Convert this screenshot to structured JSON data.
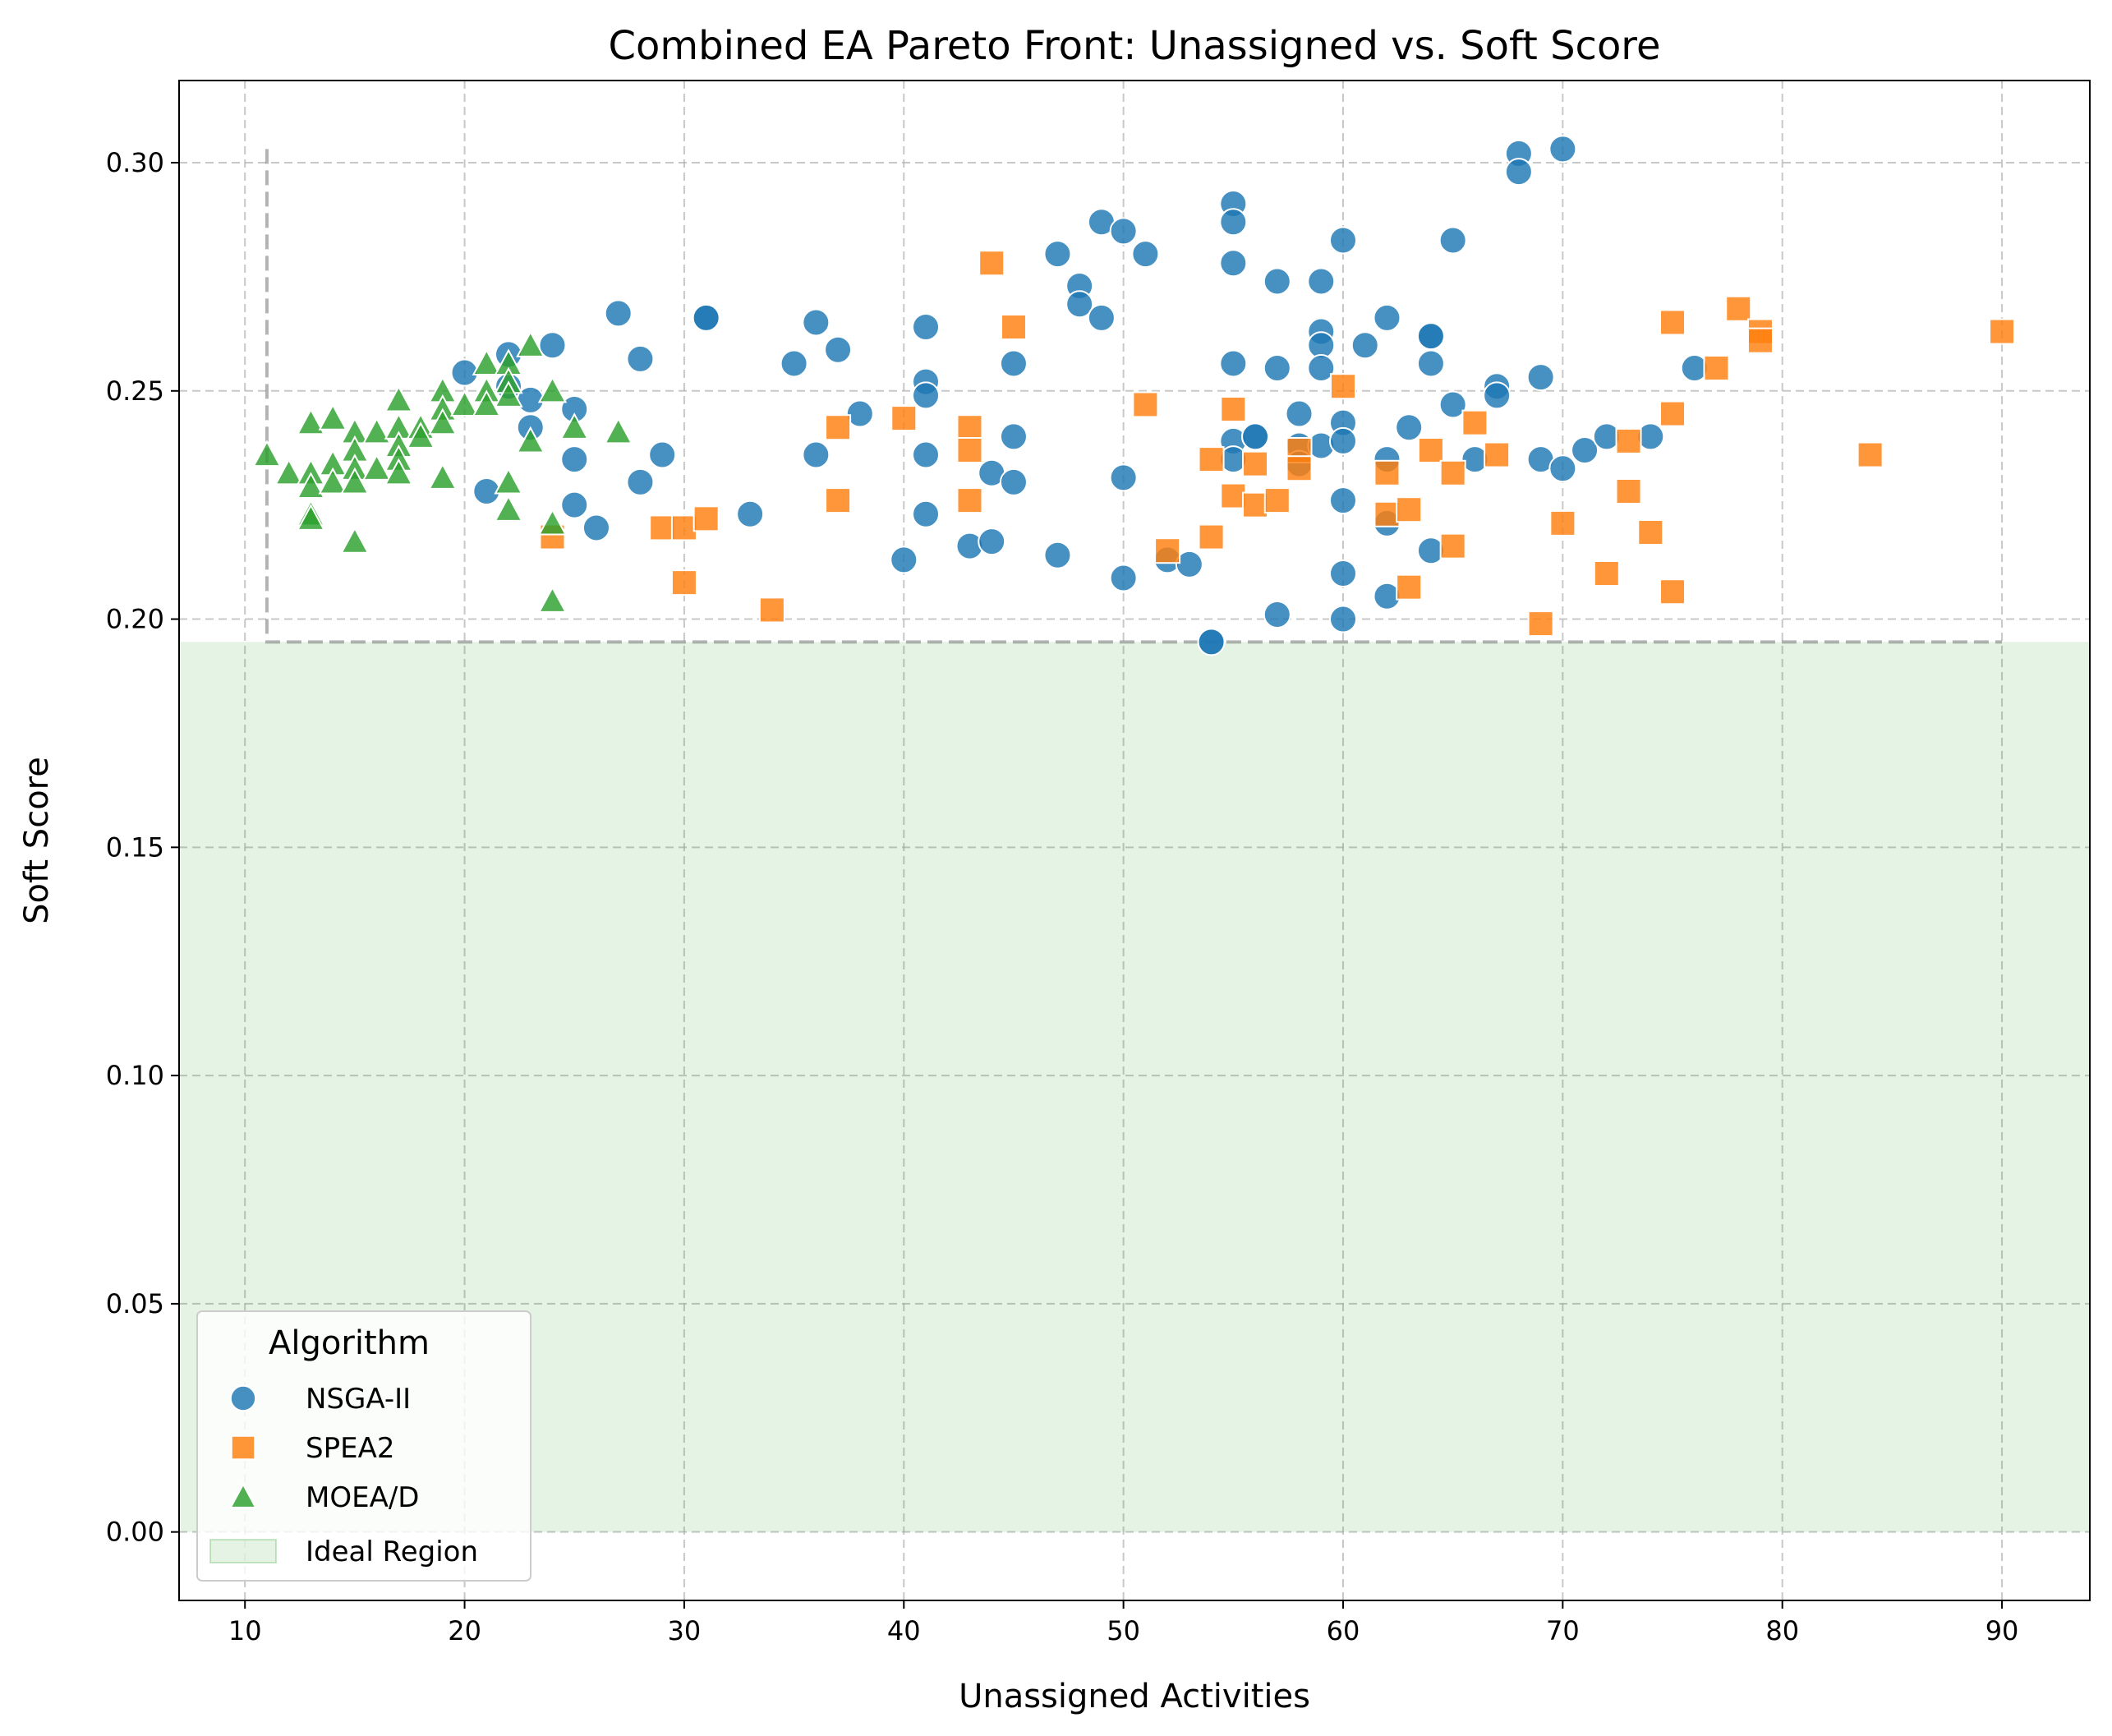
{
  "chart_data": {
    "type": "scatter",
    "title": "Combined EA Pareto Front: Unassigned vs. Soft Score",
    "xlabel": "Unassigned Activities",
    "ylabel": "Soft Score",
    "xlim": [
      7,
      94
    ],
    "ylim": [
      -0.015,
      0.318
    ],
    "xticks": [
      "10",
      "20",
      "30",
      "40",
      "50",
      "60",
      "70",
      "80",
      "90"
    ],
    "yticks": [
      "0.00",
      "0.05",
      "0.10",
      "0.15",
      "0.20",
      "0.25",
      "0.30"
    ],
    "grid": true,
    "legend": {
      "title": "Algorithm",
      "placement": "lower-left",
      "entries": [
        "NSGA-II",
        "SPEA2",
        "MOEA/D",
        "Ideal Region"
      ]
    },
    "ideal_region": {
      "label": "Ideal Region",
      "x": [
        11,
        90
      ],
      "y_min": 0.0,
      "y_max": 0.195,
      "boundary_y_top": 0.303,
      "color": "#2ca02c"
    },
    "series": [
      {
        "name": "NSGA-II",
        "marker": "circle",
        "color": "#1f77b4",
        "points": [
          [
            20,
            0.254
          ],
          [
            21,
            0.228
          ],
          [
            22,
            0.258
          ],
          [
            22,
            0.251
          ],
          [
            23,
            0.248
          ],
          [
            23,
            0.242
          ],
          [
            24,
            0.26
          ],
          [
            25,
            0.246
          ],
          [
            25,
            0.235
          ],
          [
            25,
            0.225
          ],
          [
            26,
            0.22
          ],
          [
            27,
            0.267
          ],
          [
            28,
            0.257
          ],
          [
            28,
            0.23
          ],
          [
            29,
            0.236
          ],
          [
            31,
            0.266
          ],
          [
            31,
            0.266
          ],
          [
            33,
            0.223
          ],
          [
            35,
            0.256
          ],
          [
            36,
            0.265
          ],
          [
            36,
            0.236
          ],
          [
            37,
            0.259
          ],
          [
            38,
            0.245
          ],
          [
            40,
            0.213
          ],
          [
            41,
            0.264
          ],
          [
            41,
            0.252
          ],
          [
            41,
            0.249
          ],
          [
            41,
            0.236
          ],
          [
            41,
            0.223
          ],
          [
            43,
            0.216
          ],
          [
            44,
            0.232
          ],
          [
            44,
            0.217
          ],
          [
            45,
            0.256
          ],
          [
            45,
            0.24
          ],
          [
            45,
            0.23
          ],
          [
            47,
            0.28
          ],
          [
            47,
            0.214
          ],
          [
            48,
            0.273
          ],
          [
            48,
            0.269
          ],
          [
            49,
            0.287
          ],
          [
            49,
            0.266
          ],
          [
            50,
            0.285
          ],
          [
            50,
            0.231
          ],
          [
            50,
            0.209
          ],
          [
            51,
            0.28
          ],
          [
            52,
            0.213
          ],
          [
            53,
            0.212
          ],
          [
            54,
            0.195
          ],
          [
            54,
            0.195
          ],
          [
            55,
            0.291
          ],
          [
            55,
            0.287
          ],
          [
            55,
            0.278
          ],
          [
            55,
            0.256
          ],
          [
            55,
            0.239
          ],
          [
            55,
            0.235
          ],
          [
            56,
            0.24
          ],
          [
            56,
            0.24
          ],
          [
            57,
            0.274
          ],
          [
            57,
            0.255
          ],
          [
            57,
            0.201
          ],
          [
            58,
            0.245
          ],
          [
            58,
            0.238
          ],
          [
            58,
            0.234
          ],
          [
            59,
            0.274
          ],
          [
            59,
            0.263
          ],
          [
            59,
            0.26
          ],
          [
            59,
            0.255
          ],
          [
            59,
            0.238
          ],
          [
            60,
            0.283
          ],
          [
            60,
            0.243
          ],
          [
            60,
            0.239
          ],
          [
            60,
            0.226
          ],
          [
            60,
            0.21
          ],
          [
            60,
            0.2
          ],
          [
            61,
            0.26
          ],
          [
            62,
            0.266
          ],
          [
            62,
            0.235
          ],
          [
            62,
            0.221
          ],
          [
            62,
            0.205
          ],
          [
            63,
            0.242
          ],
          [
            64,
            0.262
          ],
          [
            64,
            0.262
          ],
          [
            64,
            0.256
          ],
          [
            64,
            0.215
          ],
          [
            65,
            0.283
          ],
          [
            65,
            0.247
          ],
          [
            66,
            0.235
          ],
          [
            67,
            0.251
          ],
          [
            67,
            0.249
          ],
          [
            68,
            0.302
          ],
          [
            68,
            0.298
          ],
          [
            69,
            0.253
          ],
          [
            69,
            0.235
          ],
          [
            70,
            0.303
          ],
          [
            70,
            0.233
          ],
          [
            71,
            0.237
          ],
          [
            72,
            0.24
          ],
          [
            74,
            0.24
          ],
          [
            76,
            0.255
          ]
        ]
      },
      {
        "name": "SPEA2",
        "marker": "square",
        "color": "#ff7f0e",
        "points": [
          [
            24,
            0.218
          ],
          [
            29,
            0.22
          ],
          [
            30,
            0.22
          ],
          [
            30,
            0.208
          ],
          [
            31,
            0.222
          ],
          [
            34,
            0.202
          ],
          [
            37,
            0.242
          ],
          [
            37,
            0.226
          ],
          [
            40,
            0.244
          ],
          [
            43,
            0.242
          ],
          [
            43,
            0.237
          ],
          [
            43,
            0.226
          ],
          [
            44,
            0.278
          ],
          [
            45,
            0.264
          ],
          [
            51,
            0.247
          ],
          [
            52,
            0.215
          ],
          [
            54,
            0.235
          ],
          [
            54,
            0.218
          ],
          [
            55,
            0.246
          ],
          [
            55,
            0.227
          ],
          [
            56,
            0.234
          ],
          [
            56,
            0.225
          ],
          [
            57,
            0.226
          ],
          [
            58,
            0.237
          ],
          [
            58,
            0.233
          ],
          [
            60,
            0.251
          ],
          [
            62,
            0.232
          ],
          [
            62,
            0.223
          ],
          [
            63,
            0.224
          ],
          [
            63,
            0.207
          ],
          [
            64,
            0.237
          ],
          [
            65,
            0.232
          ],
          [
            65,
            0.216
          ],
          [
            66,
            0.243
          ],
          [
            67,
            0.236
          ],
          [
            69,
            0.199
          ],
          [
            70,
            0.221
          ],
          [
            72,
            0.21
          ],
          [
            73,
            0.239
          ],
          [
            73,
            0.228
          ],
          [
            74,
            0.219
          ],
          [
            75,
            0.265
          ],
          [
            75,
            0.245
          ],
          [
            75,
            0.206
          ],
          [
            77,
            0.255
          ],
          [
            78,
            0.268
          ],
          [
            79,
            0.263
          ],
          [
            79,
            0.261
          ],
          [
            84,
            0.236
          ],
          [
            90,
            0.263
          ]
        ]
      },
      {
        "name": "MOEA/D",
        "marker": "triangle",
        "color": "#2ca02c",
        "points": [
          [
            11,
            0.236
          ],
          [
            12,
            0.232
          ],
          [
            13,
            0.243
          ],
          [
            13,
            0.232
          ],
          [
            13,
            0.229
          ],
          [
            13,
            0.223
          ],
          [
            13,
            0.222
          ],
          [
            14,
            0.244
          ],
          [
            14,
            0.234
          ],
          [
            14,
            0.23
          ],
          [
            15,
            0.241
          ],
          [
            15,
            0.237
          ],
          [
            15,
            0.233
          ],
          [
            15,
            0.23
          ],
          [
            15,
            0.217
          ],
          [
            16,
            0.241
          ],
          [
            16,
            0.233
          ],
          [
            17,
            0.248
          ],
          [
            17,
            0.242
          ],
          [
            17,
            0.238
          ],
          [
            17,
            0.235
          ],
          [
            17,
            0.232
          ],
          [
            18,
            0.242
          ],
          [
            18,
            0.24
          ],
          [
            19,
            0.25
          ],
          [
            19,
            0.246
          ],
          [
            19,
            0.243
          ],
          [
            19,
            0.231
          ],
          [
            20,
            0.247
          ],
          [
            21,
            0.256
          ],
          [
            21,
            0.25
          ],
          [
            21,
            0.247
          ],
          [
            22,
            0.256
          ],
          [
            22,
            0.252
          ],
          [
            22,
            0.249
          ],
          [
            22,
            0.23
          ],
          [
            22,
            0.224
          ],
          [
            23,
            0.26
          ],
          [
            23,
            0.239
          ],
          [
            24,
            0.25
          ],
          [
            24,
            0.221
          ],
          [
            24,
            0.204
          ],
          [
            25,
            0.242
          ],
          [
            27,
            0.241
          ]
        ]
      }
    ]
  }
}
